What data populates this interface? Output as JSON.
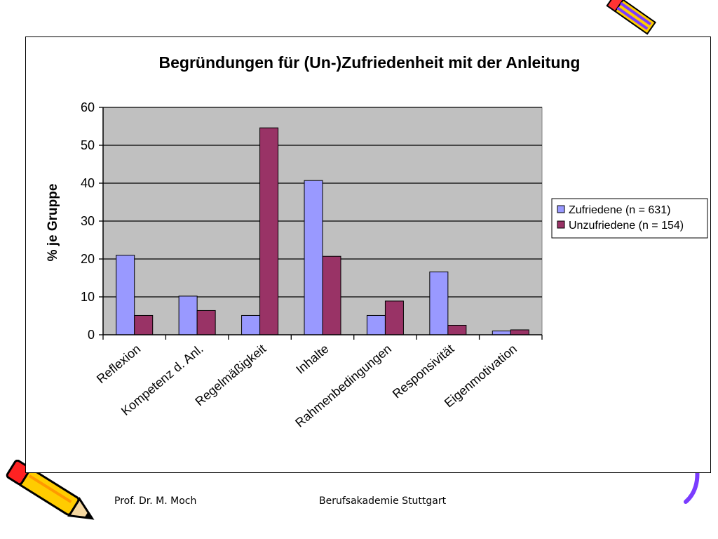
{
  "chart_data": {
    "type": "bar",
    "title": "Begründungen für (Un-)Zufriedenheit mit der Anleitung",
    "ylabel": "% je Gruppe",
    "xlabel": "",
    "ylim": [
      0,
      60
    ],
    "yticks": [
      0,
      10,
      20,
      30,
      40,
      50,
      60
    ],
    "categories": [
      "Reflexion",
      "Kompetenz d. Anl.",
      "Regelmäßigkeit",
      "Inhalte",
      "Rahmenbedingungen",
      "Responsivität",
      "Eigenmotivation"
    ],
    "series": [
      {
        "name": "Zufriedene (n = 631)",
        "color": "#9999ff",
        "values": [
          21,
          10.2,
          5.1,
          40.7,
          5.1,
          16.6,
          1
        ]
      },
      {
        "name": "Unzufriedene (n = 154)",
        "color": "#993366",
        "values": [
          5.1,
          6.4,
          54.6,
          20.7,
          8.9,
          2.5,
          1.3
        ]
      }
    ],
    "grid": true,
    "plot_background": "#c0c0c0",
    "legend_position": "right"
  },
  "footer": {
    "author": "Prof. Dr. M. Moch",
    "institution": "Berufsakademie Stuttgart"
  }
}
